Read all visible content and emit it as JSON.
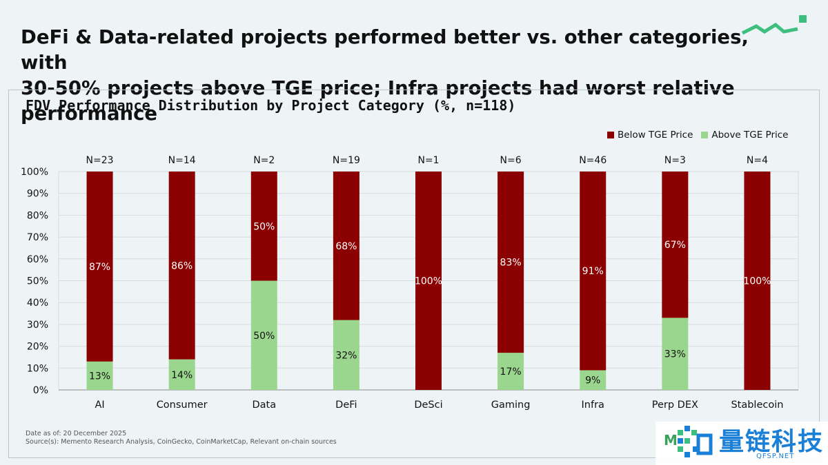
{
  "headline": {
    "line1_bold": "DeFi & Data-related projects performed better",
    "line1_rest": " vs. other categories, with",
    "line2_rest": "30-50% projects above TGE price; ",
    "line2_bold": "Infra projects had worst relative performance"
  },
  "colors": {
    "below": "#8b0000",
    "above": "#9bd68e",
    "accent": "#3fbf7f",
    "grid": "#d5dbdf"
  },
  "footnote": {
    "date": "Date as of: 20 December 2025",
    "sources": "Source(s): Memento Research Analysis, CoinGecko, CoinMarketCap, Relevant on-chain sources"
  },
  "watermark": {
    "m": "M",
    "cn": "量链科技",
    "en": "QFSP.NET",
    "icon": "pixel-logo-icon"
  },
  "chart_data": {
    "type": "bar",
    "stacked": true,
    "title": "FDV Performance Distribution by Project Category (%, n=118)",
    "xlabel": "",
    "ylabel": "",
    "ylim": [
      0,
      100
    ],
    "yticks": [
      "0%",
      "10%",
      "20%",
      "30%",
      "40%",
      "50%",
      "60%",
      "70%",
      "80%",
      "90%",
      "100%"
    ],
    "grid": true,
    "legend_position": "top-right",
    "categories": [
      "AI",
      "Consumer",
      "Data",
      "DeFi",
      "DeSci",
      "Gaming",
      "Infra",
      "Perp DEX",
      "Stablecoin"
    ],
    "n_labels": [
      "N=23",
      "N=14",
      "N=2",
      "N=19",
      "N=1",
      "N=6",
      "N=46",
      "N=3",
      "N=4"
    ],
    "series": [
      {
        "name": "Above TGE Price",
        "values": [
          13,
          14,
          50,
          32,
          0,
          17,
          9,
          33,
          0
        ],
        "labels": [
          "13%",
          "14%",
          "50%",
          "32%",
          "",
          "17%",
          "9%",
          "33%",
          ""
        ]
      },
      {
        "name": "Below TGE Price",
        "values": [
          87,
          86,
          50,
          68,
          100,
          83,
          91,
          67,
          100
        ],
        "labels": [
          "87%",
          "86%",
          "50%",
          "68%",
          "100%",
          "83%",
          "91%",
          "67%",
          "100%"
        ]
      }
    ],
    "legend": [
      "Below TGE Price",
      "Above TGE Price"
    ]
  }
}
